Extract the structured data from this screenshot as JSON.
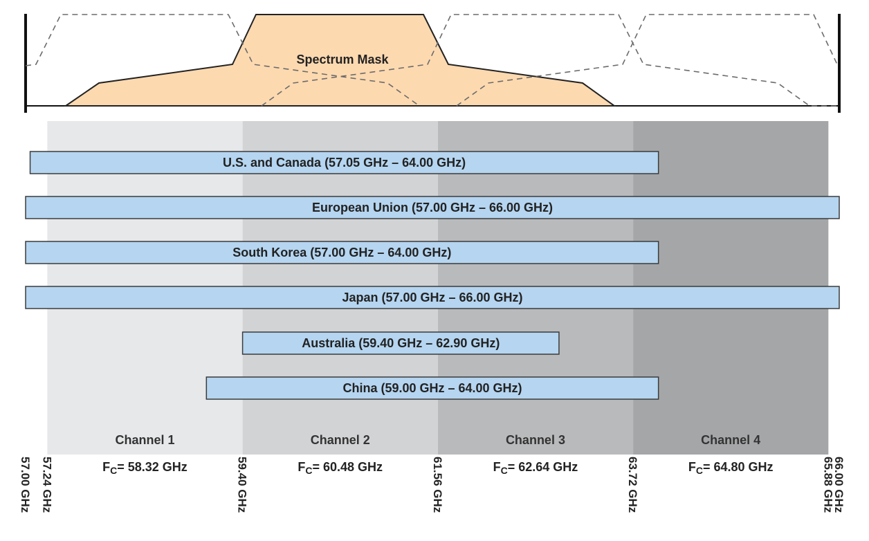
{
  "colors": {
    "channel_backgrounds": [
      "#e7e8ea",
      "#d2d3d5",
      "#b9babc",
      "#a4a6a8"
    ],
    "region_bar_fill": "#b5d5f0",
    "region_bar_stroke": "#3b3b3b",
    "mask_fill": "#fdd9b0",
    "mask_stroke": "#222222",
    "dashed_stroke": "#6b6b6b"
  },
  "spectrum_mask": {
    "label": "Spectrum Mask"
  },
  "regions": [
    {
      "name": "U.S. and Canada",
      "label": "U.S. and Canada (57.05 GHz – 64.00 GHz)",
      "start_ghz": 57.05,
      "end_ghz": 64.0
    },
    {
      "name": "European Union",
      "label": "European Union (57.00 GHz – 66.00 GHz)",
      "start_ghz": 57.0,
      "end_ghz": 66.0
    },
    {
      "name": "South Korea",
      "label": "South Korea (57.00 GHz – 64.00 GHz)",
      "start_ghz": 57.0,
      "end_ghz": 64.0
    },
    {
      "name": "Japan",
      "label": "Japan (57.00 GHz – 66.00 GHz)",
      "start_ghz": 57.0,
      "end_ghz": 66.0
    },
    {
      "name": "Australia",
      "label": "Australia (59.40 GHz – 62.90 GHz)",
      "start_ghz": 59.4,
      "end_ghz": 62.9
    },
    {
      "name": "China",
      "label": "China (59.00 GHz – 64.00 GHz)",
      "start_ghz": 59.0,
      "end_ghz": 64.0
    }
  ],
  "channels": [
    {
      "name": "Channel 1",
      "fc_label": "= 58.32 GHz",
      "start_ghz": 57.24,
      "end_ghz": 59.4,
      "fc_ghz": 58.32
    },
    {
      "name": "Channel 2",
      "fc_label": "= 60.48 GHz",
      "start_ghz": 59.4,
      "end_ghz": 61.56,
      "fc_ghz": 60.48
    },
    {
      "name": "Channel 3",
      "fc_label": "= 62.64 GHz",
      "start_ghz": 61.56,
      "end_ghz": 63.72,
      "fc_ghz": 62.64
    },
    {
      "name": "Channel 4",
      "fc_label": "= 64.80 GHz",
      "start_ghz": 63.72,
      "end_ghz": 65.88,
      "fc_ghz": 64.8
    }
  ],
  "fc_prefix": "F",
  "fc_subscript": "C",
  "frequency_ticks": [
    {
      "label": "57.00 GHz",
      "ghz": 57.0
    },
    {
      "label": "57.24 GHz",
      "ghz": 57.24
    },
    {
      "label": "59.40 GHz",
      "ghz": 59.4
    },
    {
      "label": "61.56 GHz",
      "ghz": 61.56
    },
    {
      "label": "63.72 GHz",
      "ghz": 63.72
    },
    {
      "label": "65.88 GHz",
      "ghz": 65.88
    },
    {
      "label": "66.00 GHz",
      "ghz": 66.0
    }
  ]
}
